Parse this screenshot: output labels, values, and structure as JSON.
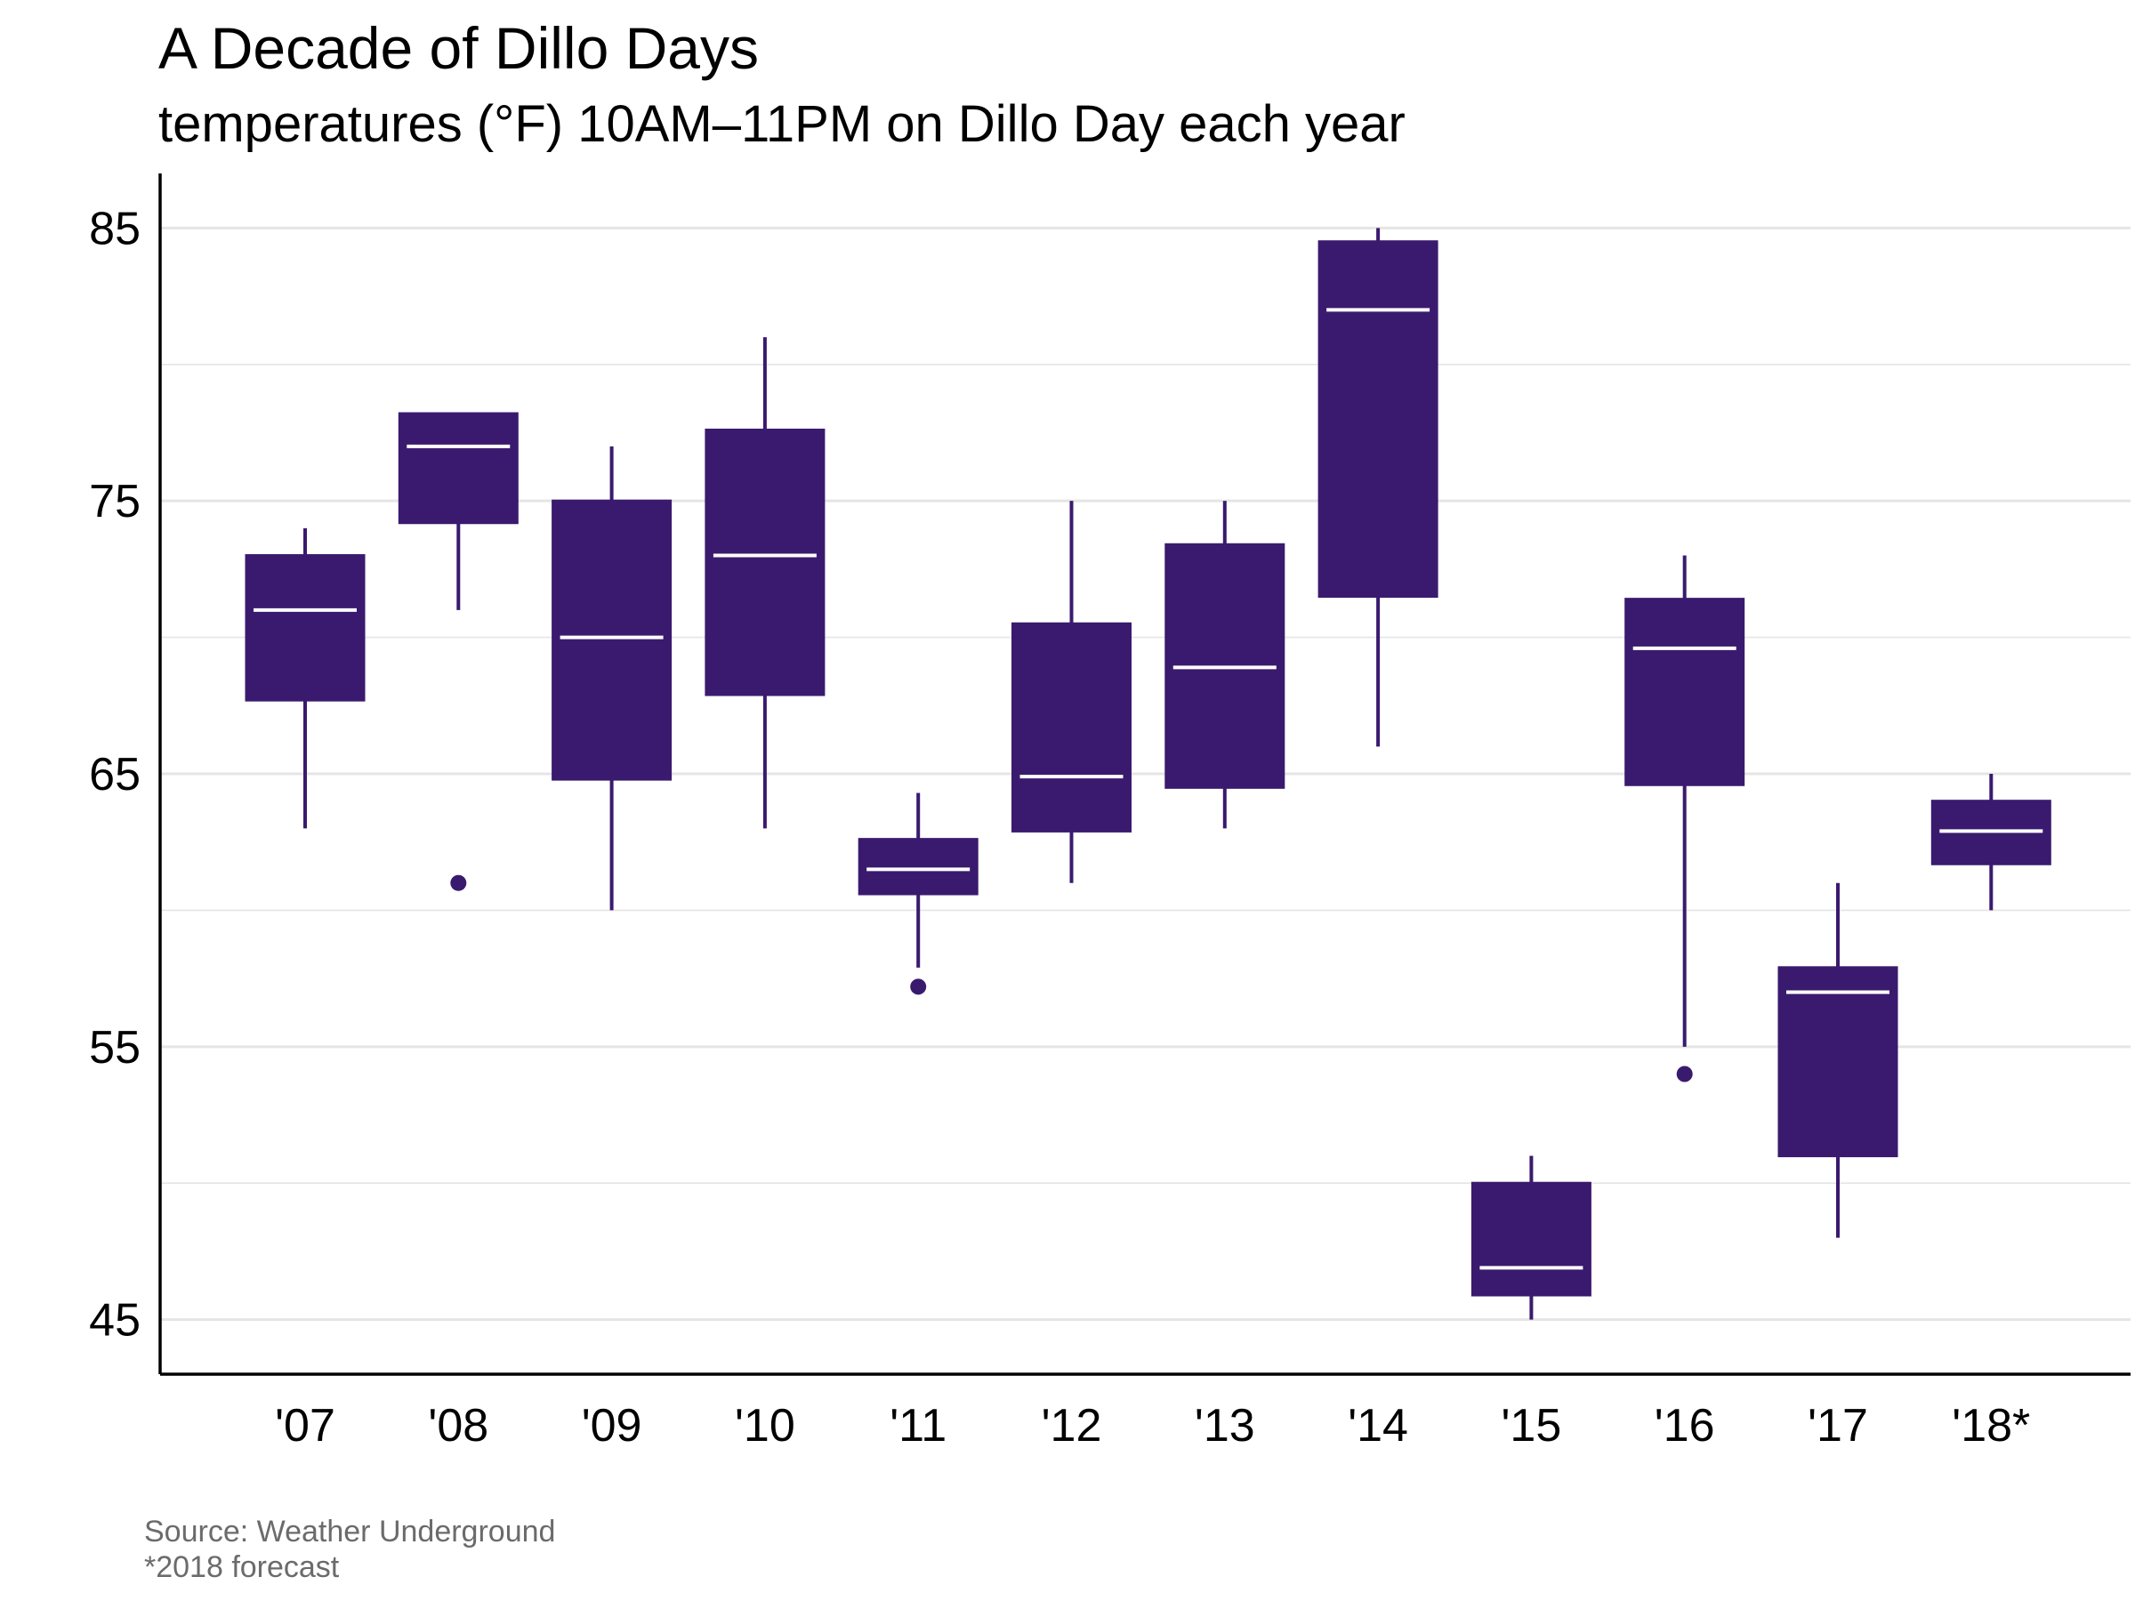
{
  "chart_data": {
    "type": "boxplot",
    "title": "A Decade of Dillo Days",
    "subtitle": "temperatures (°F) 10AM–11PM on Dillo Day each year",
    "caption": [
      "Source: Weather Underground",
      "*2018 forecast"
    ],
    "xlabel": "",
    "ylabel": "",
    "ylim": [
      43,
      87
    ],
    "yticks": [
      45,
      55,
      65,
      75,
      85
    ],
    "grid": true,
    "legend": "none",
    "colors": {
      "box": "#3a1a6e",
      "median": "#ffffff",
      "grid": "#e5e5e5",
      "axis": "#000000"
    },
    "categories": [
      "'07",
      "'08",
      "'09",
      "'10",
      "'11",
      "'12",
      "'13",
      "'14",
      "'15",
      "'16",
      "'17",
      "'18*"
    ],
    "boxes": [
      {
        "min": 63,
        "q1": 67.7,
        "median": 71,
        "q3": 73,
        "max": 74,
        "outliers": []
      },
      {
        "min": 71,
        "q1": 74.2,
        "median": 77,
        "q3": 78.2,
        "max": 78.2,
        "outliers": [
          61
        ]
      },
      {
        "min": 60,
        "q1": 64.8,
        "median": 70,
        "q3": 75,
        "max": 77,
        "outliers": []
      },
      {
        "min": 63,
        "q1": 67.9,
        "median": 73,
        "q3": 77.6,
        "max": 81,
        "outliers": []
      },
      {
        "min": 57.9,
        "q1": 60.6,
        "median": 61.5,
        "q3": 62.6,
        "max": 64.3,
        "outliers": [
          57.2
        ]
      },
      {
        "min": 61,
        "q1": 62.9,
        "median": 64.9,
        "q3": 70.5,
        "max": 75,
        "outliers": []
      },
      {
        "min": 63,
        "q1": 64.5,
        "median": 68.9,
        "q3": 73.4,
        "max": 75,
        "outliers": []
      },
      {
        "min": 66,
        "q1": 71.5,
        "median": 82,
        "q3": 84.5,
        "max": 85,
        "outliers": []
      },
      {
        "min": 45,
        "q1": 45.9,
        "median": 46.9,
        "q3": 50,
        "max": 51,
        "outliers": []
      },
      {
        "min": 55,
        "q1": 64.6,
        "median": 69.6,
        "q3": 71.4,
        "max": 73,
        "outliers": [
          54
        ]
      },
      {
        "min": 48,
        "q1": 51,
        "median": 57,
        "q3": 57.9,
        "max": 61,
        "outliers": []
      },
      {
        "min": 60,
        "q1": 61.7,
        "median": 62.9,
        "q3": 64,
        "max": 65,
        "outliers": []
      }
    ]
  }
}
